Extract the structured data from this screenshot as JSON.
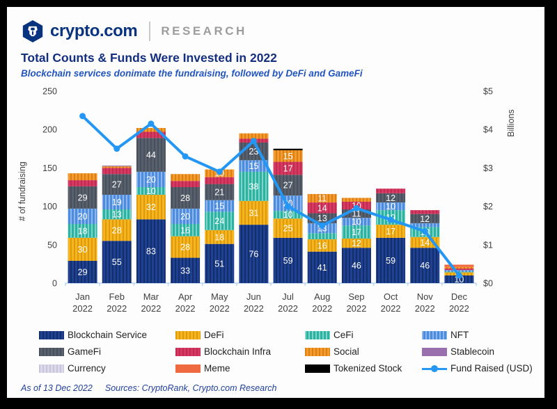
{
  "header": {
    "brand": "crypto.com",
    "division": "RESEARCH"
  },
  "title": "Total Counts & Funds Were Invested in 2022",
  "subtitle": "Blockchain services donimate the fundraising, followed by DeFi and GameFi",
  "footer": {
    "as_of": "As of 13 Dec 2022",
    "sources": "Sources: CryptoRank, Crypto.com Research"
  },
  "colors": {
    "brand_navy": "#08337e",
    "title_navy": "#142e80",
    "subtitle_blue": "#2155bd",
    "line_blue": "#2397f3",
    "axis_text": "#3f3f3f",
    "baseline": "#b9d6f4"
  },
  "chart_data": {
    "type": "stacked-bar+line",
    "categories": [
      "Jan 2022",
      "Feb 2022",
      "Mar 2022",
      "Apr 2022",
      "May 2022",
      "Jun 2022",
      "Jul 2022",
      "Aug 2022",
      "Sep 2022",
      "Oct 2022",
      "Nov 2022",
      "Dec 2022"
    ],
    "y_left": {
      "label": "# of fundraising",
      "ticks": [
        0,
        50,
        100,
        150,
        200,
        250
      ],
      "max": 250
    },
    "y_right": {
      "label": "Billions",
      "ticks": [
        "$0",
        "$1",
        "$2",
        "$3",
        "$4",
        "$5"
      ],
      "max": 5
    },
    "label_min_value": 10,
    "legend_position": "bottom",
    "grid": false,
    "series": [
      {
        "name": "Blockchain Service",
        "color": "#1e4194",
        "stripe": "#142e6a",
        "values": [
          29,
          55,
          83,
          33,
          51,
          76,
          59,
          41,
          46,
          59,
          46,
          10
        ]
      },
      {
        "name": "DeFi",
        "color": "#f6b51e",
        "stripe": "#dd9a0d",
        "values": [
          30,
          28,
          32,
          28,
          18,
          31,
          25,
          16,
          12,
          17,
          14,
          4
        ]
      },
      {
        "name": "CeFi",
        "color": "#2ab3a2",
        "stripe": "#82d4c8",
        "values": [
          18,
          13,
          10,
          16,
          24,
          38,
          10,
          8,
          17,
          19,
          13,
          1
        ]
      },
      {
        "name": "NFT",
        "color": "#4c8cdf",
        "stripe": "#8fb7ec",
        "values": [
          20,
          19,
          20,
          20,
          15,
          15,
          20,
          13,
          10,
          10,
          5,
          2
        ]
      },
      {
        "name": "GameFi",
        "color": "#57606c",
        "stripe": "#47505b",
        "values": [
          29,
          27,
          44,
          28,
          21,
          23,
          27,
          13,
          11,
          12,
          12,
          0
        ]
      },
      {
        "name": "Blockchain Infra",
        "color": "#d63a62",
        "stripe": "#c02b51",
        "values": [
          8,
          8,
          8,
          8,
          9,
          5,
          17,
          14,
          10,
          6,
          5,
          2
        ]
      },
      {
        "name": "Social",
        "color": "#f59b2e",
        "stripe": "#da7f14",
        "values": [
          9,
          2,
          5,
          9,
          10,
          7,
          15,
          11,
          5,
          0,
          0,
          2
        ]
      },
      {
        "name": "Stablecoin",
        "color": "#9a6fae",
        "stripe": null,
        "values": [
          0,
          1,
          0,
          0,
          0,
          0,
          0,
          0,
          0,
          0,
          0,
          0
        ]
      },
      {
        "name": "Currency",
        "color": "#dcdaea",
        "stripe": "#c8c6dc",
        "values": [
          0,
          0,
          0,
          0,
          0,
          0,
          0,
          0,
          0,
          0,
          0,
          0
        ]
      },
      {
        "name": "Meme",
        "color": "#ef6941",
        "stripe": null,
        "values": [
          0,
          0,
          0,
          0,
          0,
          0,
          0,
          0,
          0,
          0,
          0,
          3
        ]
      },
      {
        "name": "Tokenized Stock",
        "color": "#000000",
        "stripe": null,
        "values": [
          0,
          0,
          0,
          0,
          0,
          0,
          2,
          0,
          0,
          0,
          0,
          0
        ]
      }
    ],
    "line_series": {
      "name": "Fund Raised (USD)",
      "color": "#2397f3",
      "values": [
        4.35,
        3.5,
        4.15,
        3.3,
        2.9,
        3.7,
        2.0,
        1.5,
        1.95,
        1.65,
        1.35,
        0.2
      ]
    }
  },
  "legend": {
    "items": [
      "Blockchain Service",
      "DeFi",
      "CeFi",
      "NFT",
      "GameFi",
      "Blockchain Infra",
      "Social",
      "Stablecoin",
      "Currency",
      "Meme",
      "Tokenized Stock",
      "Fund Raised (USD)"
    ]
  }
}
